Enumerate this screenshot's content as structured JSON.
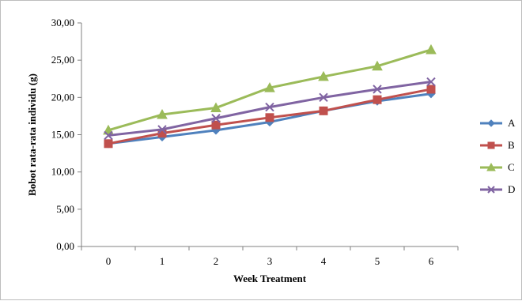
{
  "chart_data": {
    "type": "line",
    "title": "",
    "xlabel": "Week Treatment",
    "ylabel": "Bobot rata-rata individu  (g)",
    "categories": [
      "0",
      "1",
      "2",
      "3",
      "4",
      "5",
      "6"
    ],
    "ylim": [
      0,
      30
    ],
    "yticks": [
      "0,00",
      "5,00",
      "10,00",
      "15,00",
      "20,00",
      "25,00",
      "30,00"
    ],
    "grid": false,
    "legend_position": "right",
    "series": [
      {
        "name": "A",
        "color": "#4f81bd",
        "marker": "diamond",
        "values": [
          13.8,
          14.7,
          15.6,
          16.7,
          18.2,
          19.5,
          20.5
        ]
      },
      {
        "name": "B",
        "color": "#c0504d",
        "marker": "square",
        "values": [
          13.8,
          15.2,
          16.3,
          17.3,
          18.2,
          19.7,
          21.1
        ]
      },
      {
        "name": "C",
        "color": "#9bbb59",
        "marker": "triangle",
        "values": [
          15.6,
          17.7,
          18.6,
          21.3,
          22.8,
          24.2,
          26.4
        ]
      },
      {
        "name": "D",
        "color": "#8064a2",
        "marker": "x",
        "values": [
          14.9,
          15.7,
          17.2,
          18.7,
          20.0,
          21.1,
          22.1
        ]
      }
    ]
  }
}
